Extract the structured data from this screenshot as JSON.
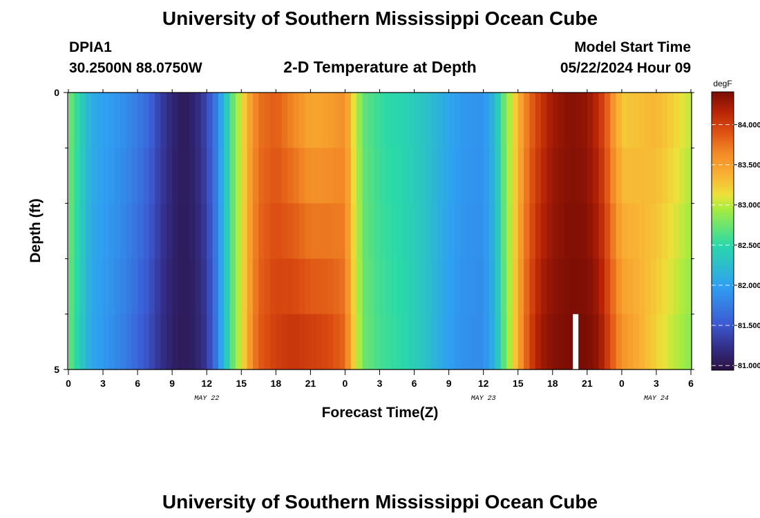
{
  "page": {
    "title_top": "University of Southern Mississippi Ocean Cube",
    "title_bottom": "University of Southern Mississippi Ocean Cube",
    "station_id": "DPIA1",
    "station_coords": "30.2500N  88.0750W",
    "plot_title": "2-D Temperature at Depth",
    "model_start_label": "Model Start Time",
    "model_start_value": "05/22/2024 Hour 09"
  },
  "chart_data": {
    "type": "heatmap",
    "title": "2-D Temperature at Depth",
    "xlabel": "Forecast Time(Z)",
    "ylabel": "Depth (ft)",
    "x_hours": [
      0,
      54
    ],
    "x_ticks": [
      {
        "hour": 0,
        "label": "0"
      },
      {
        "hour": 3,
        "label": "3"
      },
      {
        "hour": 6,
        "label": "6"
      },
      {
        "hour": 9,
        "label": "9"
      },
      {
        "hour": 12,
        "label": "12"
      },
      {
        "hour": 15,
        "label": "15"
      },
      {
        "hour": 18,
        "label": "18"
      },
      {
        "hour": 21,
        "label": "21"
      },
      {
        "hour": 24,
        "label": "0"
      },
      {
        "hour": 27,
        "label": "3"
      },
      {
        "hour": 30,
        "label": "6"
      },
      {
        "hour": 33,
        "label": "9"
      },
      {
        "hour": 36,
        "label": "12"
      },
      {
        "hour": 39,
        "label": "15"
      },
      {
        "hour": 42,
        "label": "18"
      },
      {
        "hour": 45,
        "label": "21"
      },
      {
        "hour": 48,
        "label": "0"
      },
      {
        "hour": 51,
        "label": "3"
      },
      {
        "hour": 54,
        "label": "6"
      }
    ],
    "date_labels": [
      {
        "hour": 12,
        "label": "MAY 22"
      },
      {
        "hour": 36,
        "label": "MAY 23"
      },
      {
        "hour": 51,
        "label": "MAY 24"
      }
    ],
    "ylim": [
      0,
      5
    ],
    "y_ticks": [
      {
        "depth": 0,
        "label": "0"
      },
      {
        "depth": 5,
        "label": "5"
      }
    ],
    "y_minor_ticks": [
      1,
      2,
      3,
      4
    ],
    "depth_layers": 5,
    "colorbar": {
      "unit": "degF",
      "min": 80.95,
      "max": 84.4,
      "ticks": [
        {
          "value": 84.0,
          "label": "84.000"
        },
        {
          "value": 83.5,
          "label": "83.500"
        },
        {
          "value": 83.0,
          "label": "83.000"
        },
        {
          "value": 82.5,
          "label": "82.500"
        },
        {
          "value": 82.0,
          "label": "82.000"
        },
        {
          "value": 81.5,
          "label": "81.500"
        },
        {
          "value": 81.0,
          "label": "81.000"
        }
      ]
    },
    "surface_profile": [
      [
        0,
        82.8
      ],
      [
        1,
        82.45
      ],
      [
        2,
        82.1
      ],
      [
        3,
        82.0
      ],
      [
        4,
        81.95
      ],
      [
        5,
        81.85
      ],
      [
        6,
        81.75
      ],
      [
        7,
        81.6
      ],
      [
        8,
        81.35
      ],
      [
        9,
        81.15
      ],
      [
        10,
        81.05
      ],
      [
        11,
        81.15
      ],
      [
        12,
        81.4
      ],
      [
        12.8,
        81.75
      ],
      [
        13.5,
        82.2
      ],
      [
        14.2,
        82.7
      ],
      [
        15,
        83.1
      ],
      [
        15.8,
        83.5
      ],
      [
        16.5,
        83.75
      ],
      [
        18,
        83.85
      ],
      [
        19.5,
        83.65
      ],
      [
        21,
        83.45
      ],
      [
        22.5,
        83.5
      ],
      [
        24,
        83.6
      ],
      [
        24.8,
        83.1
      ],
      [
        25.6,
        82.7
      ],
      [
        27,
        82.55
      ],
      [
        29,
        82.45
      ],
      [
        31,
        82.3
      ],
      [
        32.5,
        82.1
      ],
      [
        34,
        81.95
      ],
      [
        36,
        81.9
      ],
      [
        37,
        82.2
      ],
      [
        37.7,
        82.7
      ],
      [
        38.5,
        83.1
      ],
      [
        39.2,
        83.45
      ],
      [
        40,
        83.8
      ],
      [
        41,
        84.05
      ],
      [
        42,
        84.25
      ],
      [
        43.5,
        84.35
      ],
      [
        45,
        84.3
      ],
      [
        46,
        84.1
      ],
      [
        46.8,
        83.8
      ],
      [
        47.6,
        83.4
      ],
      [
        48.2,
        83.25
      ],
      [
        49.5,
        83.3
      ],
      [
        51,
        83.35
      ],
      [
        52.5,
        83.2
      ],
      [
        54,
        83.0
      ]
    ],
    "deep_profile": [
      [
        0,
        82.75
      ],
      [
        1,
        82.4
      ],
      [
        2,
        82.05
      ],
      [
        3,
        81.95
      ],
      [
        4,
        81.85
      ],
      [
        5,
        81.75
      ],
      [
        6,
        81.6
      ],
      [
        7,
        81.45
      ],
      [
        8,
        81.25
      ],
      [
        9,
        81.1
      ],
      [
        10,
        81.05
      ],
      [
        11,
        81.1
      ],
      [
        12,
        81.3
      ],
      [
        12.8,
        81.7
      ],
      [
        13.5,
        82.2
      ],
      [
        14.2,
        82.7
      ],
      [
        15,
        83.1
      ],
      [
        15.8,
        83.55
      ],
      [
        16.5,
        83.85
      ],
      [
        18,
        84.0
      ],
      [
        19.5,
        84.05
      ],
      [
        21,
        84.0
      ],
      [
        22.5,
        83.95
      ],
      [
        24,
        83.8
      ],
      [
        24.8,
        83.2
      ],
      [
        25.6,
        82.75
      ],
      [
        27,
        82.6
      ],
      [
        29,
        82.5
      ],
      [
        31,
        82.3
      ],
      [
        32.5,
        82.05
      ],
      [
        34,
        81.9
      ],
      [
        36,
        81.85
      ],
      [
        37,
        82.15
      ],
      [
        37.7,
        82.65
      ],
      [
        38.5,
        83.1
      ],
      [
        39.2,
        83.55
      ],
      [
        40,
        83.95
      ],
      [
        41,
        84.25
      ],
      [
        42,
        84.35
      ],
      [
        43.5,
        84.4
      ],
      [
        45,
        84.4
      ],
      [
        46,
        84.3
      ],
      [
        46.8,
        84.0
      ],
      [
        47.6,
        83.7
      ],
      [
        48.2,
        83.55
      ],
      [
        49.5,
        83.4
      ],
      [
        51,
        83.2
      ],
      [
        52.5,
        83.0
      ],
      [
        54,
        82.85
      ]
    ],
    "time_marker": {
      "hour": 44
    }
  }
}
